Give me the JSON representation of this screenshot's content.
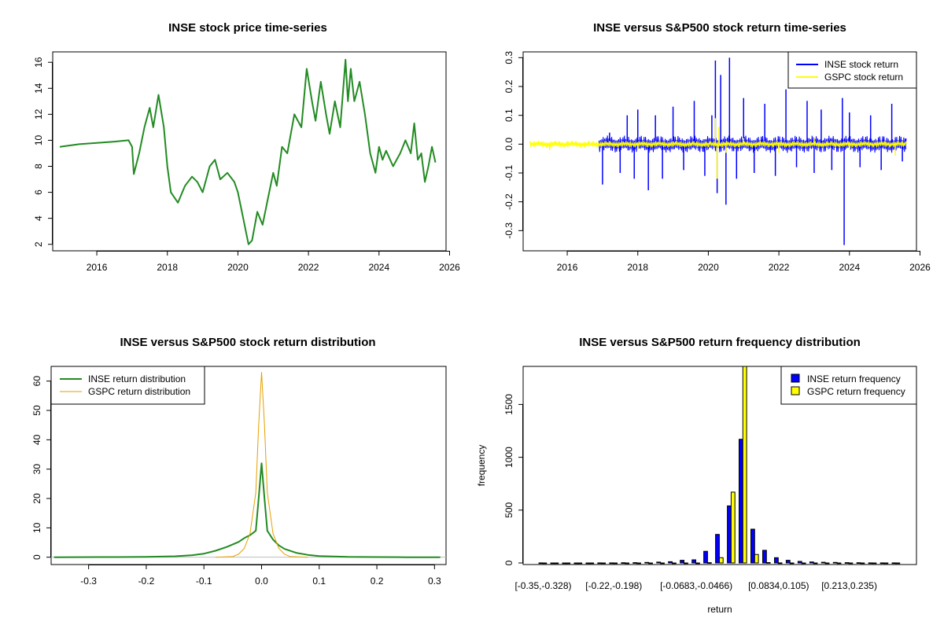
{
  "chart_data": [
    {
      "type": "line",
      "title": "INSE stock price time-series",
      "xlim": [
        2014.75,
        2025.9
      ],
      "ylim": [
        1.5,
        16.8
      ],
      "x_ticks": [
        "2016",
        "2018",
        "2020",
        "2022",
        "2024",
        "2026"
      ],
      "y_ticks": [
        "2",
        "4",
        "6",
        "8",
        "10",
        "12",
        "14",
        "16"
      ],
      "series": [
        {
          "color": "#228b22",
          "x": [
            2014.95,
            2015.5,
            2016.0,
            2016.5,
            2016.9,
            2017.0,
            2017.05,
            2017.2,
            2017.35,
            2017.5,
            2017.6,
            2017.75,
            2017.9,
            2018.0,
            2018.1,
            2018.3,
            2018.5,
            2018.7,
            2018.85,
            2019.0,
            2019.2,
            2019.35,
            2019.5,
            2019.7,
            2019.9,
            2020.0,
            2020.15,
            2020.3,
            2020.4,
            2020.55,
            2020.7,
            2020.85,
            2021.0,
            2021.1,
            2021.25,
            2021.4,
            2021.6,
            2021.8,
            2021.95,
            2022.1,
            2022.2,
            2022.35,
            2022.5,
            2022.6,
            2022.75,
            2022.9,
            2023.05,
            2023.12,
            2023.2,
            2023.3,
            2023.45,
            2023.6,
            2023.75,
            2023.9,
            2024.0,
            2024.1,
            2024.2,
            2024.4,
            2024.6,
            2024.75,
            2024.9,
            2025.0,
            2025.1,
            2025.2,
            2025.3,
            2025.4,
            2025.5,
            2025.6
          ],
          "y": [
            9.5,
            9.7,
            9.8,
            9.9,
            10.0,
            9.5,
            7.4,
            9.0,
            11.0,
            12.5,
            11.0,
            13.5,
            11.0,
            8.0,
            6.0,
            5.2,
            6.5,
            7.2,
            6.8,
            6.0,
            8.0,
            8.5,
            7.0,
            7.5,
            6.8,
            6.0,
            4.0,
            2.0,
            2.3,
            4.5,
            3.5,
            5.5,
            7.5,
            6.5,
            9.5,
            9.0,
            12.0,
            11.0,
            15.5,
            13.0,
            11.5,
            14.5,
            12.0,
            10.5,
            13.0,
            11.0,
            16.2,
            13.0,
            15.5,
            13.0,
            14.5,
            12.0,
            9.0,
            7.5,
            9.5,
            8.5,
            9.2,
            8.0,
            9.0,
            10.0,
            9.0,
            11.3,
            8.5,
            9.0,
            6.8,
            8.0,
            9.5,
            8.3
          ]
        }
      ]
    },
    {
      "type": "line",
      "title": "INSE versus S&P500 stock return time-series",
      "xlim": [
        2014.75,
        2025.9
      ],
      "ylim": [
        -0.37,
        0.32
      ],
      "x_ticks": [
        "2016",
        "2018",
        "2020",
        "2022",
        "2024",
        "2026"
      ],
      "y_ticks": [
        "-0.3",
        "-0.2",
        "-0.1",
        "0.0",
        "0.1",
        "0.2",
        "0.3"
      ],
      "legend_position": "top-right",
      "series": [
        {
          "name": "INSE stock return",
          "color": "#0000ff",
          "x": [
            2016.9,
            2017.0,
            2017.2,
            2017.5,
            2017.7,
            2017.9,
            2018.0,
            2018.3,
            2018.5,
            2018.7,
            2019.0,
            2019.3,
            2019.6,
            2019.9,
            2020.1,
            2020.2,
            2020.25,
            2020.35,
            2020.5,
            2020.6,
            2020.8,
            2021.0,
            2021.3,
            2021.6,
            2021.9,
            2022.2,
            2022.5,
            2022.8,
            2023.0,
            2023.2,
            2023.5,
            2023.8,
            2023.85,
            2024.0,
            2024.3,
            2024.6,
            2024.9,
            2025.2,
            2025.5,
            2025.6
          ],
          "y": [
            0.0,
            -0.14,
            0.04,
            -0.1,
            0.1,
            -0.12,
            0.12,
            -0.16,
            0.1,
            -0.12,
            0.13,
            -0.09,
            0.15,
            -0.11,
            0.1,
            0.29,
            -0.17,
            0.24,
            -0.21,
            0.3,
            -0.12,
            0.16,
            -0.1,
            0.14,
            -0.11,
            0.19,
            -0.08,
            0.15,
            -0.1,
            0.12,
            -0.09,
            0.16,
            -0.35,
            0.11,
            -0.08,
            0.1,
            -0.09,
            0.14,
            -0.06,
            0.02
          ],
          "band_half_width": 0.03
        },
        {
          "name": "GSPC stock return",
          "color": "#ffff00",
          "x": [
            2014.95,
            2015.5,
            2016.0,
            2016.5,
            2017.0,
            2018.0,
            2019.0,
            2020.0,
            2020.2,
            2020.25,
            2020.3,
            2020.5,
            2021.0,
            2022.0,
            2023.0,
            2024.0,
            2025.0,
            2025.3,
            2025.6
          ],
          "y": [
            0.01,
            -0.02,
            0.01,
            -0.01,
            0.005,
            -0.02,
            0.01,
            -0.01,
            0.09,
            -0.12,
            0.06,
            -0.03,
            0.02,
            -0.03,
            0.02,
            -0.02,
            0.01,
            -0.04,
            0.01
          ],
          "band_half_width": 0.012
        }
      ]
    },
    {
      "type": "line",
      "title": "INSE versus S&P500 stock return distribution",
      "xlim": [
        -0.365,
        0.32
      ],
      "ylim": [
        -2.5,
        65
      ],
      "x_ticks": [
        "-0.3",
        "-0.2",
        "-0.1",
        "0.0",
        "0.1",
        "0.2",
        "0.3"
      ],
      "y_ticks": [
        "0",
        "10",
        "20",
        "30",
        "40",
        "50",
        "60"
      ],
      "legend_position": "top-left",
      "series": [
        {
          "name": "INSE return distribution",
          "color": "#228b22",
          "x": [
            -0.36,
            -0.25,
            -0.2,
            -0.15,
            -0.12,
            -0.1,
            -0.08,
            -0.06,
            -0.04,
            -0.03,
            -0.02,
            -0.01,
            -0.005,
            0.0,
            0.005,
            0.01,
            0.02,
            0.03,
            0.04,
            0.06,
            0.08,
            0.1,
            0.15,
            0.2,
            0.25,
            0.31
          ],
          "y": [
            0.0,
            0.05,
            0.1,
            0.3,
            0.7,
            1.2,
            2.2,
            3.5,
            5.2,
            6.5,
            7.5,
            9.0,
            20.0,
            32.0,
            20.0,
            9.0,
            6.0,
            4.0,
            2.8,
            1.5,
            0.8,
            0.4,
            0.1,
            0.05,
            0.0,
            0.0
          ]
        },
        {
          "name": "GSPC return distribution",
          "color": "#e69f00",
          "x": [
            -0.08,
            -0.05,
            -0.04,
            -0.03,
            -0.02,
            -0.01,
            -0.005,
            0.0,
            0.005,
            0.01,
            0.02,
            0.03,
            0.04,
            0.05,
            0.08
          ],
          "y": [
            0.0,
            0.2,
            1.0,
            3.0,
            8.0,
            22.0,
            45.0,
            63.0,
            45.0,
            22.0,
            8.0,
            3.0,
            1.0,
            0.2,
            0.0
          ]
        }
      ]
    },
    {
      "type": "bar",
      "title": "INSE versus S&P500 return frequency distribution",
      "xlabel": "return",
      "ylabel": "frequency",
      "ylim": [
        0,
        1860
      ],
      "y_ticks": [
        "0",
        "500",
        "1000",
        "1500"
      ],
      "x_tick_labels": [
        "[-0.35,-0.328)",
        "[-0.22,-0.198)",
        "[-0.0683,-0.0466)",
        "[0.0834,0.105)",
        "[0.213,0.235)"
      ],
      "x_tick_label_bins": [
        0,
        6,
        13,
        20,
        26
      ],
      "legend_position": "top-right",
      "bins": 31,
      "series": [
        {
          "name": "INSE return frequency",
          "color": "#0000ff",
          "values": [
            1,
            0,
            0,
            0,
            0,
            1,
            1,
            2,
            3,
            5,
            8,
            12,
            25,
            30,
            110,
            270,
            540,
            1170,
            320,
            120,
            50,
            25,
            15,
            10,
            7,
            5,
            3,
            2,
            1,
            1,
            1
          ]
        },
        {
          "name": "GSPC return frequency",
          "color": "#ffff00",
          "values": [
            0,
            0,
            0,
            0,
            0,
            0,
            0,
            0,
            0,
            0,
            0,
            0,
            0,
            0,
            3,
            50,
            670,
            1880,
            80,
            4,
            1,
            0,
            0,
            0,
            0,
            0,
            0,
            0,
            0,
            0,
            0
          ]
        }
      ]
    }
  ]
}
